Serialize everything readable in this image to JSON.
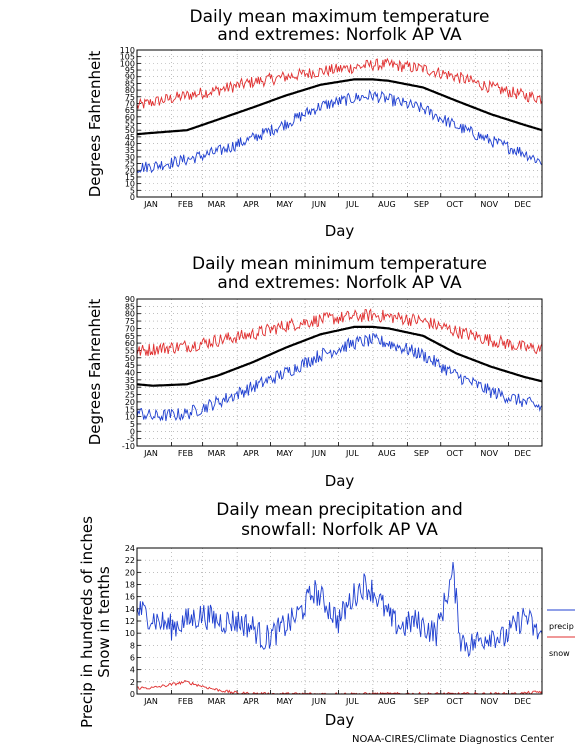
{
  "months": [
    "JAN",
    "FEB",
    "MAR",
    "APR",
    "MAY",
    "JUN",
    "JUL",
    "AUG",
    "SEP",
    "OCT",
    "NOV",
    "DEC"
  ],
  "credit": "NOAA-CIRES/Climate Diagnostics Center",
  "colors": {
    "mean": "#000000",
    "record_high": "#e03030",
    "record_low": "#2040d0",
    "precip": "#2040d0",
    "snow": "#e03030",
    "grid": "#999999"
  },
  "chart_data": [
    {
      "type": "line",
      "title_line1": "Daily mean maximum temperature",
      "title_line2": "and extremes: Norfolk AP VA",
      "xlabel": "Day",
      "ylabel": "Degrees Fahrenheit",
      "ylim": [
        0,
        110
      ],
      "yticks": [
        0,
        5,
        10,
        15,
        20,
        25,
        30,
        35,
        40,
        45,
        50,
        55,
        60,
        65,
        70,
        75,
        80,
        85,
        90,
        95,
        100,
        105,
        110
      ],
      "grid": true,
      "series": [
        {
          "key": "high",
          "color": "#e03030",
          "days": [
            1,
            15,
            46,
            74,
            105,
            135,
            166,
            196,
            213,
            227,
            258,
            288,
            319,
            349,
            365
          ],
          "values": [
            68,
            71,
            76,
            80,
            86,
            90,
            94,
            97,
            99,
            99,
            96,
            90,
            82,
            76,
            74
          ]
        },
        {
          "key": "mean",
          "color": "#000000",
          "days": [
            1,
            15,
            46,
            74,
            105,
            135,
            166,
            196,
            213,
            227,
            258,
            288,
            319,
            349,
            365
          ],
          "values": [
            47,
            48,
            50,
            58,
            67,
            76,
            84,
            88,
            88,
            87,
            82,
            72,
            62,
            54,
            50
          ]
        },
        {
          "key": "low",
          "color": "#2040d0",
          "days": [
            1,
            15,
            46,
            74,
            105,
            135,
            166,
            196,
            213,
            227,
            258,
            288,
            319,
            349,
            365
          ],
          "values": [
            22,
            23,
            28,
            34,
            44,
            55,
            68,
            74,
            76,
            73,
            66,
            53,
            42,
            33,
            26
          ]
        }
      ]
    },
    {
      "type": "line",
      "title_line1": "Daily mean minimum temperature",
      "title_line2": "and extremes: Norfolk AP VA",
      "xlabel": "Day",
      "ylabel": "Degrees Fahrenheit",
      "ylim": [
        -10,
        90
      ],
      "yticks": [
        -10,
        -5,
        0,
        5,
        10,
        15,
        20,
        25,
        30,
        35,
        40,
        45,
        50,
        55,
        60,
        65,
        70,
        75,
        80,
        85,
        90
      ],
      "grid": true,
      "series": [
        {
          "key": "high",
          "color": "#e03030",
          "days": [
            1,
            15,
            46,
            74,
            105,
            135,
            166,
            196,
            213,
            227,
            258,
            288,
            319,
            349,
            365
          ],
          "values": [
            54,
            56,
            58,
            62,
            66,
            72,
            76,
            78,
            79,
            78,
            75,
            68,
            62,
            57,
            56
          ]
        },
        {
          "key": "mean",
          "color": "#000000",
          "days": [
            1,
            15,
            46,
            74,
            105,
            135,
            166,
            196,
            213,
            227,
            258,
            288,
            319,
            349,
            365
          ],
          "values": [
            32,
            31,
            32,
            38,
            47,
            57,
            66,
            71,
            71,
            70,
            65,
            53,
            44,
            37,
            34
          ]
        },
        {
          "key": "low",
          "color": "#2040d0",
          "days": [
            1,
            15,
            46,
            74,
            105,
            135,
            166,
            196,
            213,
            227,
            258,
            288,
            319,
            349,
            365
          ],
          "values": [
            13,
            10,
            12,
            20,
            30,
            40,
            52,
            60,
            62,
            60,
            52,
            38,
            27,
            20,
            16
          ]
        }
      ]
    },
    {
      "type": "line",
      "title_line1": "Daily mean precipitation and",
      "title_line2": "snowfall: Norfolk AP VA",
      "xlabel": "Day",
      "ylabel_line1": "Precip in hundreds of inches",
      "ylabel_line2": "Snow in tenths",
      "ylim": [
        0,
        24
      ],
      "yticks": [
        0,
        2,
        4,
        6,
        8,
        10,
        12,
        14,
        16,
        18,
        20,
        22,
        24
      ],
      "grid": true,
      "legend": [
        "precip",
        "snow"
      ],
      "legend_position": "right",
      "series": [
        {
          "key": "precip",
          "name": "precip",
          "color": "#2040d0",
          "days": [
            1,
            10,
            20,
            32,
            45,
            60,
            75,
            90,
            105,
            115,
            125,
            140,
            150,
            160,
            170,
            182,
            195,
            205,
            213,
            220,
            230,
            240,
            250,
            260,
            270,
            285,
            292,
            300,
            310,
            320,
            330,
            340,
            350,
            360,
            365
          ],
          "values": [
            14,
            13,
            12,
            11,
            12,
            13,
            12,
            12,
            11,
            9,
            10,
            12,
            14,
            17,
            15,
            12,
            16,
            18,
            17,
            15,
            12,
            11,
            12,
            11,
            10,
            20,
            9,
            8,
            9,
            10,
            9,
            11,
            13,
            10,
            10
          ]
        },
        {
          "key": "snow",
          "name": "snow",
          "color": "#e03030",
          "days": [
            1,
            15,
            30,
            45,
            55,
            70,
            85,
            95,
            120,
            200,
            300,
            340,
            355,
            365
          ],
          "values": [
            1,
            1,
            1.5,
            2,
            1.5,
            0.8,
            0.3,
            0.1,
            0,
            0,
            0,
            0,
            0.2,
            0.4
          ]
        }
      ]
    }
  ]
}
